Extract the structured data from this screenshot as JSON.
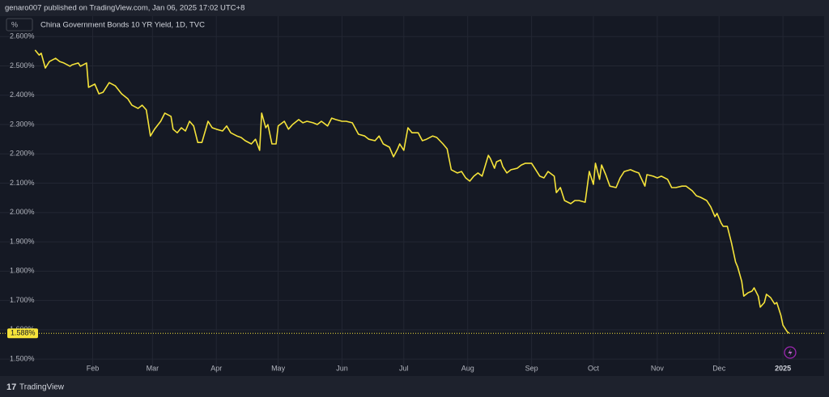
{
  "header": {
    "published": "genaro007 published on TradingView.com, Jan 06, 2025 17:02 UTC+8",
    "brand": "TradingView"
  },
  "chart_data": {
    "type": "line",
    "title": "China Government Bonds 10 YR Yield, 1D, TVC",
    "unit_button": "%",
    "color": "#f5e33a",
    "grid": true,
    "xlim": [
      -14,
      386
    ],
    "ylim": [
      1.47,
      2.62
    ],
    "xticks": [
      {
        "value": 31,
        "label": "Feb"
      },
      {
        "value": 60,
        "label": "Mar"
      },
      {
        "value": 91,
        "label": "Apr"
      },
      {
        "value": 121,
        "label": "May"
      },
      {
        "value": 152,
        "label": "Jun"
      },
      {
        "value": 182,
        "label": "Jul"
      },
      {
        "value": 213,
        "label": "Aug"
      },
      {
        "value": 244,
        "label": "Sep"
      },
      {
        "value": 274,
        "label": "Oct"
      },
      {
        "value": 305,
        "label": "Nov"
      },
      {
        "value": 335,
        "label": "Dec"
      },
      {
        "value": 366,
        "label": "2025"
      }
    ],
    "yticks": [
      {
        "value": 1.5,
        "label": "1.500%"
      },
      {
        "value": 1.6,
        "label": "1.600%"
      },
      {
        "value": 1.7,
        "label": "1.700%"
      },
      {
        "value": 1.8,
        "label": "1.800%"
      },
      {
        "value": 1.9,
        "label": "1.900%"
      },
      {
        "value": 2.0,
        "label": "2.000%"
      },
      {
        "value": 2.1,
        "label": "2.100%"
      },
      {
        "value": 2.2,
        "label": "2.200%"
      },
      {
        "value": 2.3,
        "label": "2.300%"
      },
      {
        "value": 2.4,
        "label": "2.400%"
      },
      {
        "value": 2.5,
        "label": "2.500%"
      },
      {
        "value": 2.6,
        "label": "2.600%"
      }
    ],
    "price_line": {
      "value": 1.588,
      "label": "1.588%"
    },
    "x": [
      3,
      5,
      6,
      8,
      10,
      13,
      15,
      17,
      20,
      21,
      24,
      25,
      28,
      29,
      32,
      34,
      36,
      39,
      42,
      45,
      48,
      50,
      53,
      55,
      57,
      59,
      61,
      64,
      66,
      69,
      70,
      72,
      74,
      76,
      78,
      80,
      82,
      84,
      87,
      89,
      91,
      94,
      96,
      98,
      101,
      103,
      105,
      108,
      110,
      112,
      113,
      115,
      116,
      118,
      120,
      121,
      124,
      126,
      128,
      131,
      133,
      135,
      138,
      140,
      142,
      145,
      147,
      149,
      152,
      154,
      157,
      160,
      163,
      165,
      168,
      170,
      172,
      175,
      177,
      179,
      180,
      182,
      184,
      186,
      189,
      191,
      193,
      196,
      198,
      201,
      203,
      205,
      208,
      210,
      212,
      214,
      216,
      218,
      220,
      223,
      224,
      226,
      227,
      229,
      230,
      232,
      234,
      237,
      239,
      241,
      244,
      245,
      248,
      250,
      252,
      255,
      256,
      258,
      260,
      263,
      265,
      267,
      270,
      272,
      274,
      275,
      277,
      278,
      280,
      282,
      285,
      287,
      289,
      292,
      294,
      296,
      299,
      300,
      303,
      305,
      307,
      310,
      312,
      314,
      317,
      319,
      322,
      324,
      326,
      329,
      331,
      333,
      334,
      336,
      337,
      339,
      341,
      343,
      344,
      346,
      347,
      349,
      351,
      352,
      354,
      355,
      357,
      358,
      360,
      362,
      363,
      365,
      366,
      368,
      369
    ],
    "values": [
      2.554,
      2.537,
      2.543,
      2.493,
      2.515,
      2.526,
      2.515,
      2.51,
      2.499,
      2.504,
      2.51,
      2.499,
      2.51,
      2.427,
      2.438,
      2.405,
      2.41,
      2.443,
      2.432,
      2.405,
      2.388,
      2.366,
      2.355,
      2.366,
      2.35,
      2.261,
      2.284,
      2.311,
      2.339,
      2.328,
      2.284,
      2.272,
      2.289,
      2.278,
      2.311,
      2.295,
      2.239,
      2.239,
      2.311,
      2.289,
      2.284,
      2.278,
      2.295,
      2.272,
      2.261,
      2.256,
      2.245,
      2.234,
      2.25,
      2.212,
      2.339,
      2.289,
      2.3,
      2.234,
      2.234,
      2.295,
      2.311,
      2.284,
      2.3,
      2.317,
      2.306,
      2.311,
      2.306,
      2.3,
      2.311,
      2.295,
      2.322,
      2.317,
      2.311,
      2.311,
      2.306,
      2.267,
      2.261,
      2.25,
      2.245,
      2.261,
      2.234,
      2.223,
      2.19,
      2.217,
      2.234,
      2.212,
      2.289,
      2.272,
      2.272,
      2.245,
      2.25,
      2.261,
      2.256,
      2.234,
      2.217,
      2.146,
      2.135,
      2.14,
      2.118,
      2.107,
      2.124,
      2.135,
      2.124,
      2.195,
      2.184,
      2.151,
      2.173,
      2.179,
      2.157,
      2.135,
      2.146,
      2.151,
      2.162,
      2.168,
      2.168,
      2.157,
      2.124,
      2.118,
      2.14,
      2.124,
      2.068,
      2.085,
      2.041,
      2.03,
      2.041,
      2.041,
      2.035,
      2.14,
      2.096,
      2.168,
      2.113,
      2.162,
      2.129,
      2.09,
      2.085,
      2.118,
      2.14,
      2.146,
      2.14,
      2.135,
      2.09,
      2.129,
      2.124,
      2.118,
      2.124,
      2.113,
      2.085,
      2.085,
      2.09,
      2.09,
      2.074,
      2.057,
      2.052,
      2.041,
      2.019,
      1.986,
      1.997,
      1.964,
      1.953,
      1.953,
      1.897,
      1.831,
      1.815,
      1.765,
      1.715,
      1.726,
      1.732,
      1.743,
      1.715,
      1.677,
      1.693,
      1.721,
      1.71,
      1.688,
      1.693,
      1.649,
      1.616,
      1.594,
      1.588
    ]
  }
}
